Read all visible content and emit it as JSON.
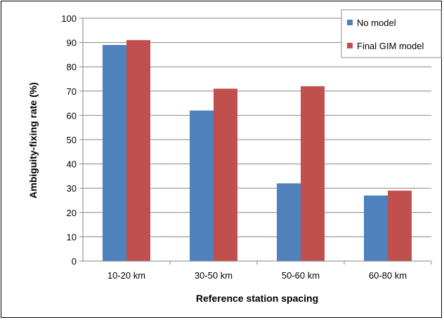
{
  "chart_data": {
    "type": "bar",
    "categories": [
      "10-20 km",
      "30-50 km",
      "50-60 km",
      "60-80 km"
    ],
    "series": [
      {
        "name": "No model",
        "values": [
          89,
          62,
          32,
          27
        ],
        "color": "#4F81BD"
      },
      {
        "name": "Final GIM model",
        "values": [
          91,
          71,
          72,
          29
        ],
        "color": "#C0504D"
      }
    ],
    "xlabel": "Reference station spacing",
    "ylabel": "Ambiguity-fixing rate (%)",
    "ylim": [
      0,
      100
    ],
    "yticks": [
      0,
      10,
      20,
      30,
      40,
      50,
      60,
      70,
      80,
      90,
      100
    ],
    "grid": true,
    "legend": "top-right"
  }
}
